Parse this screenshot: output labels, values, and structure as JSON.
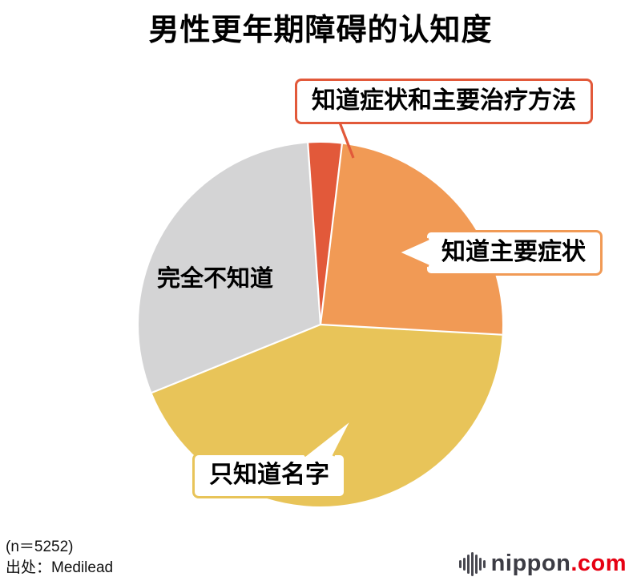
{
  "title": "男性更年期障碍的认知度",
  "chart_data": {
    "type": "pie",
    "title": "男性更年期障碍的认知度",
    "start_angle_deg": -4,
    "unit": "%",
    "values_note": "percentages estimated from slice angles; no numeric labels shown in figure",
    "slices": [
      {
        "label": "知道症状和主要治疗方法",
        "value": 3,
        "color": "#e2593a"
      },
      {
        "label": "知道主要症状",
        "value": 24,
        "color": "#f19a55"
      },
      {
        "label": "只知道名字",
        "value": 43,
        "color": "#e8c459"
      },
      {
        "label": "完全不知道",
        "value": 30,
        "color": "#d4d4d5"
      }
    ],
    "separator_color": "#ffffff",
    "legend_position": "callouts around pie"
  },
  "footnote": {
    "sample_size": "(n＝5252)",
    "source": "出处：Medilead"
  },
  "logo": {
    "name": "nippon",
    "tld": ".com",
    "name_color": "#3c3c44",
    "tld_color": "#e60012",
    "icon": "soundbar-icon"
  }
}
